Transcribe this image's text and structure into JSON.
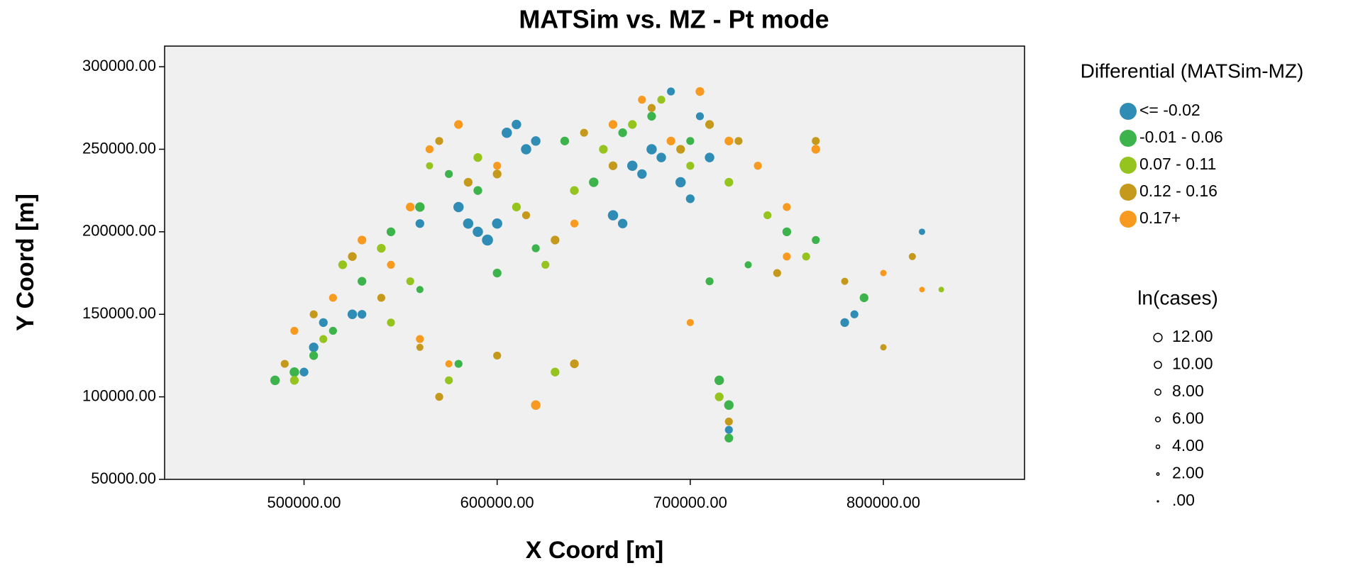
{
  "chart_data": {
    "type": "scatter",
    "title": "MATSim vs. MZ - Pt mode",
    "x_label": "X Coord [m]",
    "y_label": "Y Coord [m]",
    "xlim": [
      427800,
      873100
    ],
    "ylim": [
      50000,
      312500
    ],
    "xticks": [
      {
        "value": 500000,
        "label": "500000.00"
      },
      {
        "value": 600000,
        "label": "600000.00"
      },
      {
        "value": 700000,
        "label": "700000.00"
      },
      {
        "value": 800000,
        "label": "800000.00"
      }
    ],
    "yticks": [
      {
        "value": 50000,
        "label": "50000.00"
      },
      {
        "value": 100000,
        "label": "100000.00"
      },
      {
        "value": 150000,
        "label": "150000.00"
      },
      {
        "value": 200000,
        "label": "200000.00"
      },
      {
        "value": 250000,
        "label": "250000.00"
      },
      {
        "value": 300000,
        "label": "300000.00"
      }
    ],
    "legend_title": "Differential (MATSim-MZ)",
    "size_legend_title": "ln(cases)",
    "size_legend": [
      {
        "value": 12,
        "label": "12.00"
      },
      {
        "value": 10,
        "label": "10.00"
      },
      {
        "value": 8,
        "label": "8.00"
      },
      {
        "value": 6,
        "label": "6.00"
      },
      {
        "value": 4,
        "label": "4.00"
      },
      {
        "value": 2,
        "label": "2.00"
      },
      {
        "value": 0,
        "label": ".00"
      }
    ],
    "series": [
      {
        "name": "<= -0.02",
        "color": "#2f8db5",
        "x": [
          500000,
          505000,
          510000,
          525000,
          530000,
          580000,
          585000,
          590000,
          595000,
          600000,
          605000,
          610000,
          615000,
          620000,
          660000,
          665000,
          670000,
          675000,
          680000,
          685000,
          690000,
          695000,
          700000,
          705000,
          710000,
          780000,
          785000,
          820000,
          720000,
          560000
        ],
        "y": [
          115000,
          130000,
          145000,
          150000,
          150000,
          215000,
          205000,
          200000,
          195000,
          205000,
          260000,
          265000,
          250000,
          255000,
          210000,
          205000,
          240000,
          235000,
          250000,
          245000,
          285000,
          230000,
          220000,
          270000,
          245000,
          145000,
          150000,
          200000,
          80000,
          205000
        ],
        "size": [
          9,
          10,
          9,
          10,
          9,
          11,
          11,
          11,
          12,
          11,
          11,
          10,
          11,
          10,
          11,
          10,
          11,
          10,
          11,
          10,
          8,
          11,
          9,
          8,
          10,
          9,
          8,
          6,
          8,
          9
        ]
      },
      {
        "name": "-0.01 - 0.06",
        "color": "#3cb34b",
        "x": [
          485000,
          495000,
          505000,
          515000,
          530000,
          545000,
          560000,
          575000,
          590000,
          600000,
          620000,
          635000,
          650000,
          665000,
          680000,
          700000,
          715000,
          720000,
          730000,
          750000,
          765000,
          790000,
          710000,
          720000,
          560000,
          580000
        ],
        "y": [
          110000,
          115000,
          125000,
          140000,
          170000,
          200000,
          215000,
          235000,
          225000,
          175000,
          190000,
          255000,
          230000,
          260000,
          270000,
          255000,
          110000,
          95000,
          180000,
          200000,
          195000,
          160000,
          170000,
          75000,
          165000,
          120000
        ],
        "size": [
          10,
          10,
          9,
          8,
          9,
          9,
          10,
          8,
          9,
          9,
          8,
          9,
          10,
          9,
          9,
          8,
          10,
          10,
          7,
          9,
          8,
          9,
          8,
          9,
          7,
          8
        ]
      },
      {
        "name": "0.07 - 0.11",
        "color": "#96c41f",
        "x": [
          495000,
          510000,
          520000,
          540000,
          555000,
          565000,
          590000,
          610000,
          625000,
          640000,
          655000,
          670000,
          685000,
          700000,
          720000,
          740000,
          760000,
          545000,
          575000,
          630000,
          715000,
          830000
        ],
        "y": [
          110000,
          135000,
          180000,
          190000,
          170000,
          240000,
          245000,
          215000,
          180000,
          225000,
          250000,
          265000,
          280000,
          240000,
          230000,
          210000,
          185000,
          145000,
          110000,
          115000,
          100000,
          165000
        ],
        "size": [
          9,
          8,
          9,
          9,
          8,
          7,
          9,
          9,
          8,
          9,
          9,
          9,
          8,
          8,
          9,
          8,
          8,
          8,
          8,
          9,
          9,
          5
        ]
      },
      {
        "name": "0.12 - 0.16",
        "color": "#c59a1c",
        "x": [
          490000,
          505000,
          525000,
          540000,
          560000,
          570000,
          585000,
          600000,
          615000,
          630000,
          645000,
          660000,
          680000,
          695000,
          710000,
          725000,
          745000,
          765000,
          800000,
          815000,
          570000,
          600000,
          640000,
          720000,
          780000
        ],
        "y": [
          120000,
          150000,
          185000,
          160000,
          130000,
          255000,
          230000,
          235000,
          210000,
          195000,
          260000,
          240000,
          275000,
          250000,
          265000,
          255000,
          175000,
          255000,
          130000,
          185000,
          100000,
          125000,
          120000,
          85000,
          170000
        ],
        "size": [
          8,
          8,
          9,
          8,
          7,
          8,
          9,
          9,
          8,
          9,
          8,
          9,
          8,
          9,
          9,
          8,
          8,
          8,
          6,
          7,
          8,
          8,
          9,
          8,
          7
        ]
      },
      {
        "name": "0.17+",
        "color": "#f89a1f",
        "x": [
          495000,
          515000,
          530000,
          545000,
          555000,
          565000,
          580000,
          600000,
          620000,
          640000,
          660000,
          675000,
          690000,
          705000,
          720000,
          735000,
          750000,
          765000,
          800000,
          820000,
          620000,
          560000,
          700000,
          750000,
          575000
        ],
        "y": [
          140000,
          160000,
          195000,
          180000,
          215000,
          250000,
          265000,
          240000,
          95000,
          205000,
          265000,
          280000,
          255000,
          285000,
          255000,
          240000,
          215000,
          250000,
          175000,
          165000,
          95000,
          135000,
          145000,
          185000,
          120000
        ],
        "size": [
          8,
          8,
          9,
          8,
          9,
          8,
          9,
          8,
          10,
          8,
          9,
          8,
          9,
          9,
          9,
          8,
          8,
          9,
          6,
          5,
          9,
          8,
          7,
          8,
          7
        ]
      }
    ]
  }
}
